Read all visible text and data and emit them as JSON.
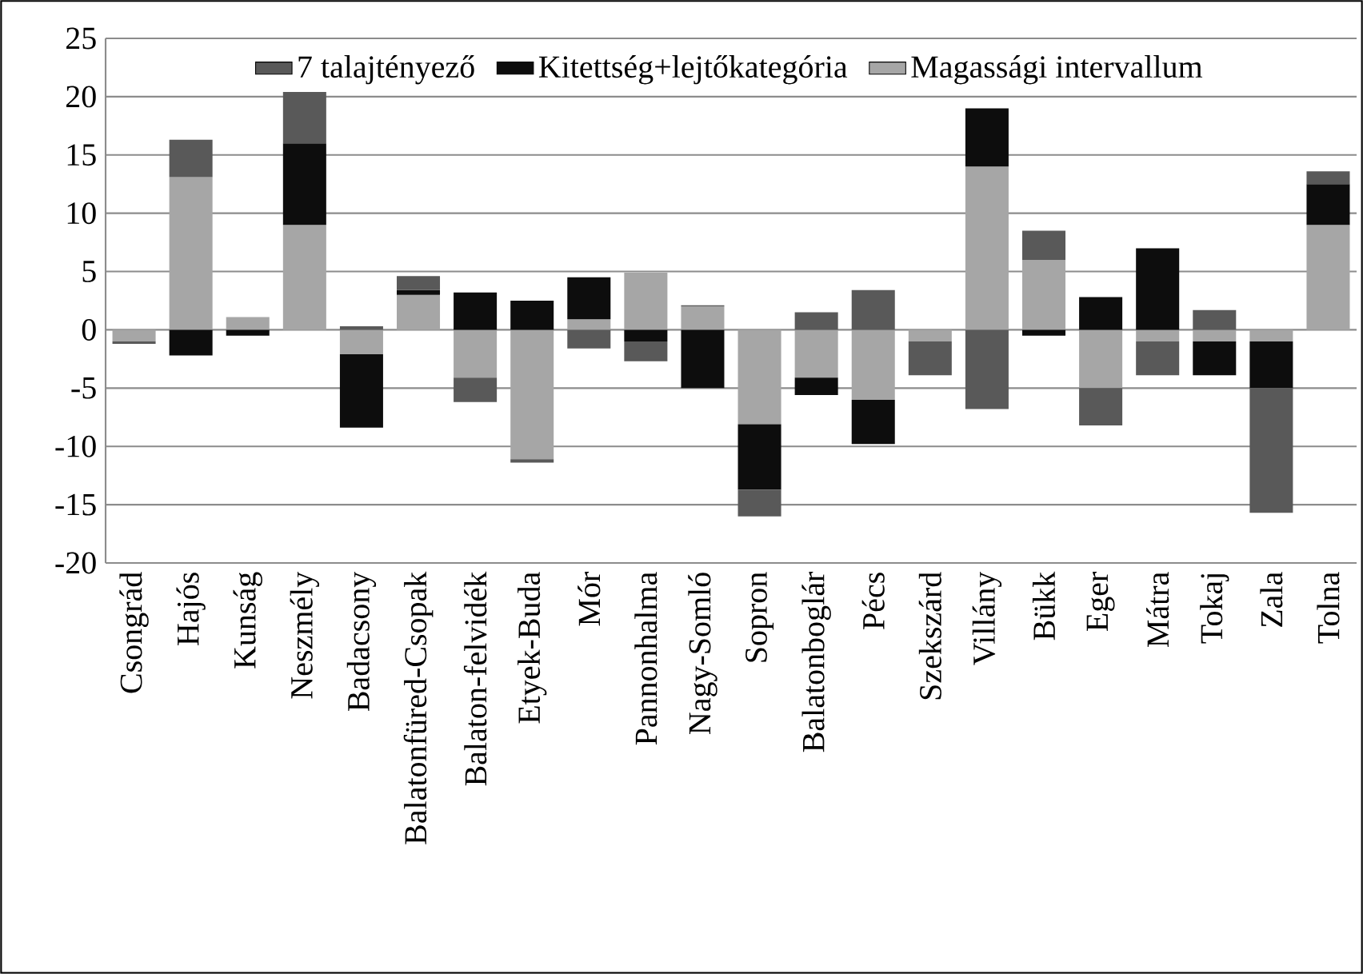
{
  "chart_data": {
    "type": "bar",
    "stacked": true,
    "categories": [
      "Csongrád",
      "Hajós",
      "Kunság",
      "Neszmély",
      "Badacsony",
      "Balatonfüred-Csopak",
      "Balaton-felvidék",
      "Etyek-Buda",
      "Mór",
      "Pannonhalma",
      "Nagy-Somló",
      "Sopron",
      "Balatonboglár",
      "Pécs",
      "Szekszárd",
      "Villány",
      "Bükk",
      "Eger",
      "Mátra",
      "Tokaj",
      "Zala",
      "Tolna"
    ],
    "series": [
      {
        "name": "Magassági intervallum",
        "color": "#a6a6a6",
        "values": [
          -1.0,
          13.1,
          1.1,
          9.0,
          -2.1,
          3.0,
          -4.1,
          -11.1,
          0.9,
          4.9,
          2.0,
          -8.1,
          -4.1,
          -6.0,
          -1.0,
          14.0,
          6.0,
          -5.0,
          -1.0,
          -1.0,
          -1.0,
          9.0
        ]
      },
      {
        "name": "Kitettség+lejtőkategória",
        "color": "#0d0d0d",
        "values": [
          0,
          -2.2,
          -0.5,
          7.0,
          -6.3,
          0.4,
          3.2,
          2.5,
          3.6,
          -1.0,
          -5.0,
          -5.6,
          -1.5,
          -3.8,
          0,
          5.0,
          -0.5,
          2.8,
          7.0,
          -2.9,
          -4.0,
          3.5
        ]
      },
      {
        "name": "7 talajtényező",
        "color": "#595959",
        "values": [
          -0.2,
          3.2,
          0,
          4.4,
          0.3,
          1.2,
          -2.1,
          -0.3,
          -1.6,
          -1.7,
          0.1,
          -2.3,
          1.5,
          3.4,
          -2.9,
          -6.8,
          2.5,
          -3.2,
          -2.9,
          1.7,
          -10.7,
          1.1
        ]
      }
    ],
    "ylim": [
      -20,
      25
    ],
    "yticks": [
      -20,
      -15,
      -10,
      -5,
      0,
      5,
      10,
      15,
      20,
      25
    ],
    "grid": "y",
    "legend": "top"
  }
}
